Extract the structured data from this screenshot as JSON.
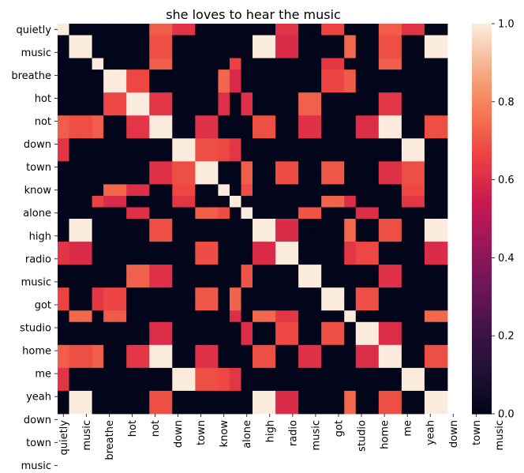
{
  "chart_data": {
    "type": "heatmap",
    "title": "she loves to hear the music",
    "tokens": [
      "quietly",
      "music",
      "music",
      "breathe",
      "hot",
      "hot",
      "not",
      "not",
      "down",
      "down",
      "town",
      "town",
      "know",
      "know",
      "alone",
      "high",
      "radio",
      "music",
      "music",
      "got",
      "got",
      "studio",
      "studio",
      "home",
      "home",
      "me",
      "yeah",
      "yeah",
      "down",
      "down",
      "town",
      "town",
      "music",
      "music"
    ],
    "tick_labels": [
      "quietly",
      "music",
      "breathe",
      "hot",
      "not",
      "down",
      "town",
      "know",
      "alone",
      "high",
      "radio",
      "music",
      "got",
      "studio",
      "home",
      "me",
      "yeah",
      "down",
      "town",
      "music"
    ],
    "xlabel": "",
    "ylabel": "",
    "vmin": 0,
    "vmax": 1,
    "colorbar_ticks": [
      "0.0",
      "0.2",
      "0.4",
      "0.6",
      "0.8",
      "1.0"
    ],
    "colormap": "rocket",
    "grid": false
  }
}
